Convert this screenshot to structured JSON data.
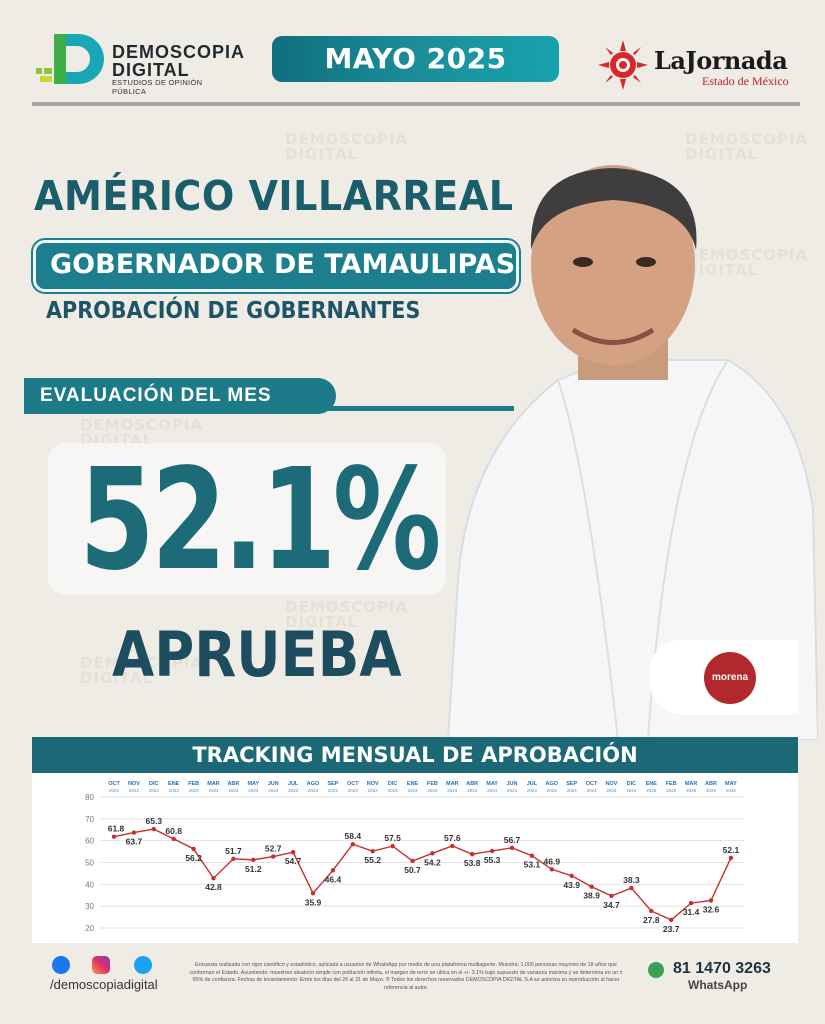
{
  "brand": {
    "logo_line1": "DEMOSCOPIA",
    "logo_line2": "DIGITAL",
    "logo_tagline": "ESTUDIOS DE OPINIÓN PÚBLICA",
    "accent": "#1d7f8d",
    "dark": "#1d5566"
  },
  "header": {
    "month": "MAYO 2025",
    "partner_name": "LaJornada",
    "partner_sub": "Estado de México"
  },
  "watermark": {
    "line1": "DEMOSCOPIA",
    "line2": "DIGITAL"
  },
  "title": {
    "name": "AMÉRICO VILLARREAL",
    "role": "GOBERNADOR DE TAMAULIPAS",
    "subtitle": "APROBACIÓN DE GOBERNANTES"
  },
  "evaluation": {
    "label": "EVALUACIÓN DEL MES",
    "value": "52.1%",
    "verdict": "APRUEBA"
  },
  "party": {
    "label": "morena",
    "color": "#b3282d"
  },
  "chart_title": "TRACKING MENSUAL DE APROBACIÓN",
  "chart_data": {
    "type": "line",
    "title": "TRACKING MENSUAL DE APROBACIÓN",
    "month_labels": [
      "OCT",
      "NOV",
      "DIC",
      "ENE",
      "FEB",
      "MAR",
      "ABR",
      "MAY",
      "JUN",
      "JUL",
      "AGO",
      "SEP",
      "OCT",
      "NOV",
      "DIC",
      "ENE",
      "FEB",
      "MAR",
      "ABR",
      "MAY",
      "JUN",
      "JUL",
      "AGO",
      "SEP",
      "OCT",
      "NOV",
      "DIC",
      "ENE",
      "FEB",
      "MAR",
      "ABR",
      "MAY"
    ],
    "year_labels": [
      "2022",
      "2022",
      "2022",
      "2023",
      "2023",
      "2023",
      "2023",
      "2023",
      "2023",
      "2023",
      "2023",
      "2023",
      "2023",
      "2023",
      "2023",
      "2024",
      "2024",
      "2024",
      "2024",
      "2024",
      "2024",
      "2024",
      "2024",
      "2024",
      "2024",
      "2024",
      "2024",
      "2025",
      "2025",
      "2025",
      "2025",
      "2025"
    ],
    "values": [
      61.8,
      63.7,
      65.3,
      60.8,
      56.2,
      42.8,
      51.7,
      51.2,
      52.7,
      54.7,
      35.9,
      46.4,
      58.4,
      55.2,
      57.5,
      50.7,
      54.2,
      57.6,
      53.8,
      55.3,
      56.7,
      53.1,
      46.9,
      43.9,
      38.9,
      34.7,
      38.3,
      27.8,
      23.7,
      31.4,
      32.6,
      52.1
    ],
    "labels_below": [
      false,
      true,
      false,
      false,
      true,
      true,
      false,
      true,
      false,
      true,
      true,
      true,
      false,
      true,
      false,
      true,
      true,
      false,
      true,
      true,
      false,
      true,
      false,
      true,
      true,
      true,
      false,
      true,
      true,
      true,
      true,
      false
    ],
    "y_ticks": [
      20,
      30,
      40,
      50,
      60,
      70,
      80
    ],
    "ylim": [
      20,
      80
    ],
    "series_color": "#c4312b",
    "grid": true
  },
  "footer": {
    "handle": "/demoscopiadigital",
    "disclaimer": "Encuesta realizada con rigor científico y estadístico, aplicada a usuarios de WhatsApp por medio de una plataforma multiagente. Muestra: 1,000 personas mayores de 18 años que conforman el Estado. Asumiendo: muestreo aleatorio simple con población infinita, el margen de error se ubica en el +/- 3.1% bajo supuesto de varianza máxima y se determina en un ± 95% de confianza. Fechas de levantamiento: Entre los días del 26 al 31 de Mayo. ® Todos los derechos reservados DEMOSCOPIA DIGITAL S.A se autoriza su reproducción al hacer referencia al autor.",
    "phone": "81 1470 3263",
    "whatsapp": "WhatsApp"
  }
}
